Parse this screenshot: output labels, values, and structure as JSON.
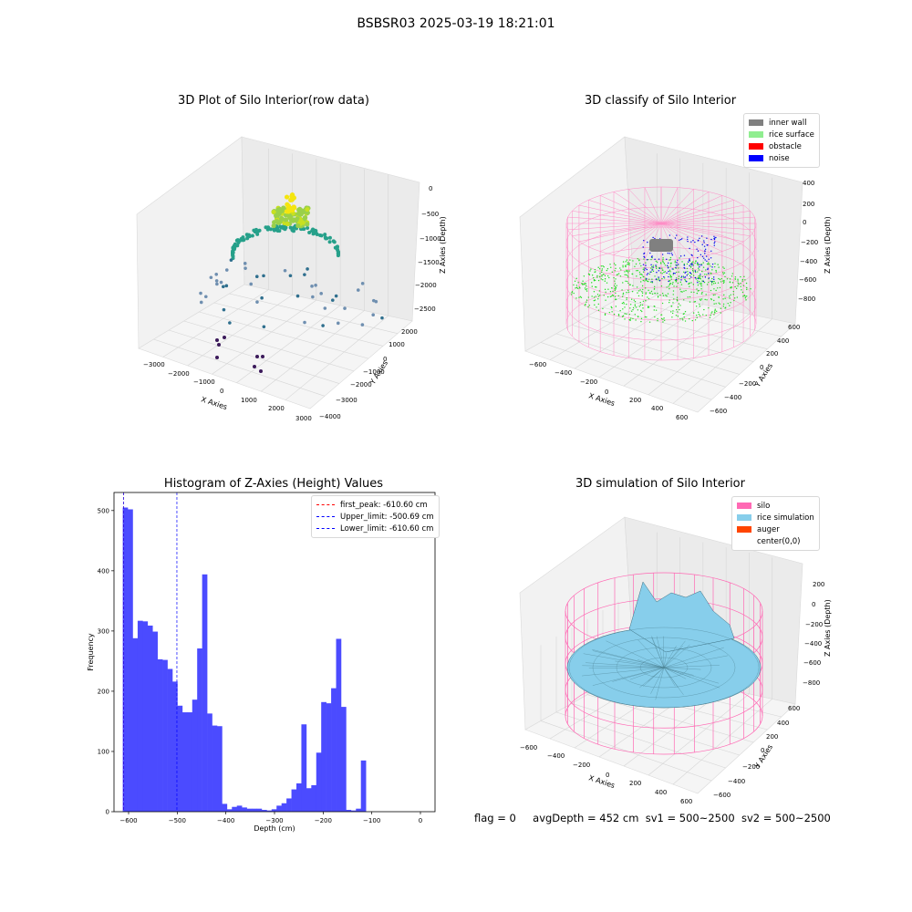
{
  "suptitle": "BSBSR03 2025-03-19 18:21:01",
  "footer": {
    "flag": "flag = 0",
    "avg": "avgDepth = 452 cm",
    "sv1": "sv1 = 500~2500",
    "sv2": "sv2 = 500~2500"
  },
  "chart_data": [
    {
      "type": "scatter",
      "title": "3D Plot of Silo Interior(row data)",
      "xlabel": "X Axies",
      "ylabel": "Y Axies",
      "zlabel": "Z Axies (Depth)",
      "x_ticks": [
        "−3000",
        "−2000",
        "−1000",
        "0",
        "1000",
        "2000",
        "3000"
      ],
      "y_ticks": [
        "−4000",
        "−3000",
        "−2000",
        "−1000",
        "0",
        "1000",
        "2000"
      ],
      "z_ticks": [
        "0",
        "−500",
        "−1000",
        "−1500",
        "−2000",
        "−2500"
      ],
      "xlim": [
        -3000,
        3000
      ],
      "ylim": [
        -4000,
        2000
      ],
      "zlim": [
        -2700,
        0
      ]
    },
    {
      "type": "scatter",
      "title": "3D classify of Silo Interior",
      "xlabel": "X Axies",
      "ylabel": "Y Axies",
      "zlabel": "Z Axies (Depth)",
      "x_ticks": [
        "−600",
        "−400",
        "−200",
        "0",
        "200",
        "400",
        "600"
      ],
      "y_ticks": [
        "−600",
        "−400",
        "−200",
        "0",
        "200",
        "400",
        "600"
      ],
      "z_ticks": [
        "400",
        "200",
        "0",
        "−200",
        "−400",
        "−600",
        "−800"
      ],
      "legend": [
        {
          "label": "inner wall",
          "color": "#808080"
        },
        {
          "label": "rice surface",
          "color": "#90ee90"
        },
        {
          "label": "obstacle",
          "color": "#ff0000"
        },
        {
          "label": "noise",
          "color": "#0000ff"
        }
      ]
    },
    {
      "type": "bar",
      "title": "Histogram of Z-Axies (Height) Values",
      "xlabel": "Depth (cm)",
      "ylabel": "Frequency",
      "xlim": [
        -630,
        30
      ],
      "ylim": [
        0,
        530
      ],
      "x_ticks": [
        -600,
        -500,
        -400,
        -300,
        -200,
        -100,
        0
      ],
      "y_ticks": [
        0,
        100,
        200,
        300,
        400,
        500
      ],
      "bin_start": -612,
      "bin_width": 10.2,
      "values": [
        505,
        502,
        288,
        317,
        316,
        309,
        299,
        253,
        252,
        237,
        216,
        176,
        165,
        165,
        186,
        271,
        394,
        163,
        143,
        142,
        13,
        4,
        8,
        10,
        7,
        5,
        5,
        5,
        3,
        2,
        4,
        10,
        14,
        22,
        37,
        47,
        145,
        39,
        44,
        98,
        182,
        180,
        205,
        287,
        174,
        3,
        2,
        5,
        85
      ],
      "vlines": [
        {
          "label": "first_peak: -610.60 cm",
          "x": -610.6,
          "color": "#ff0000"
        },
        {
          "label": "Upper_limit: -500.69 cm",
          "x": -500.69,
          "color": "#0000ff"
        },
        {
          "label": "Lower_limit: -610.60 cm",
          "x": -610.6,
          "color": "#0000ff"
        }
      ]
    },
    {
      "type": "area",
      "title": "3D simulation of Silo Interior",
      "xlabel": "X Axies",
      "ylabel": "Y Axies",
      "zlabel": "Z Axies (Depth)",
      "x_ticks": [
        "−600",
        "−400",
        "−200",
        "0",
        "200",
        "400",
        "600"
      ],
      "y_ticks": [
        "−600",
        "−400",
        "−200",
        "0",
        "200",
        "400",
        "600"
      ],
      "z_ticks": [
        "200",
        "0",
        "−200",
        "−400",
        "−600",
        "−800"
      ],
      "legend": [
        {
          "label": "silo",
          "color": "#ff69b4"
        },
        {
          "label": "rice simulation",
          "color": "#87ceeb"
        },
        {
          "label": "auger",
          "color": "#ff4500"
        },
        {
          "label": "center(0,0)",
          "color": "#ffffff"
        }
      ]
    }
  ]
}
